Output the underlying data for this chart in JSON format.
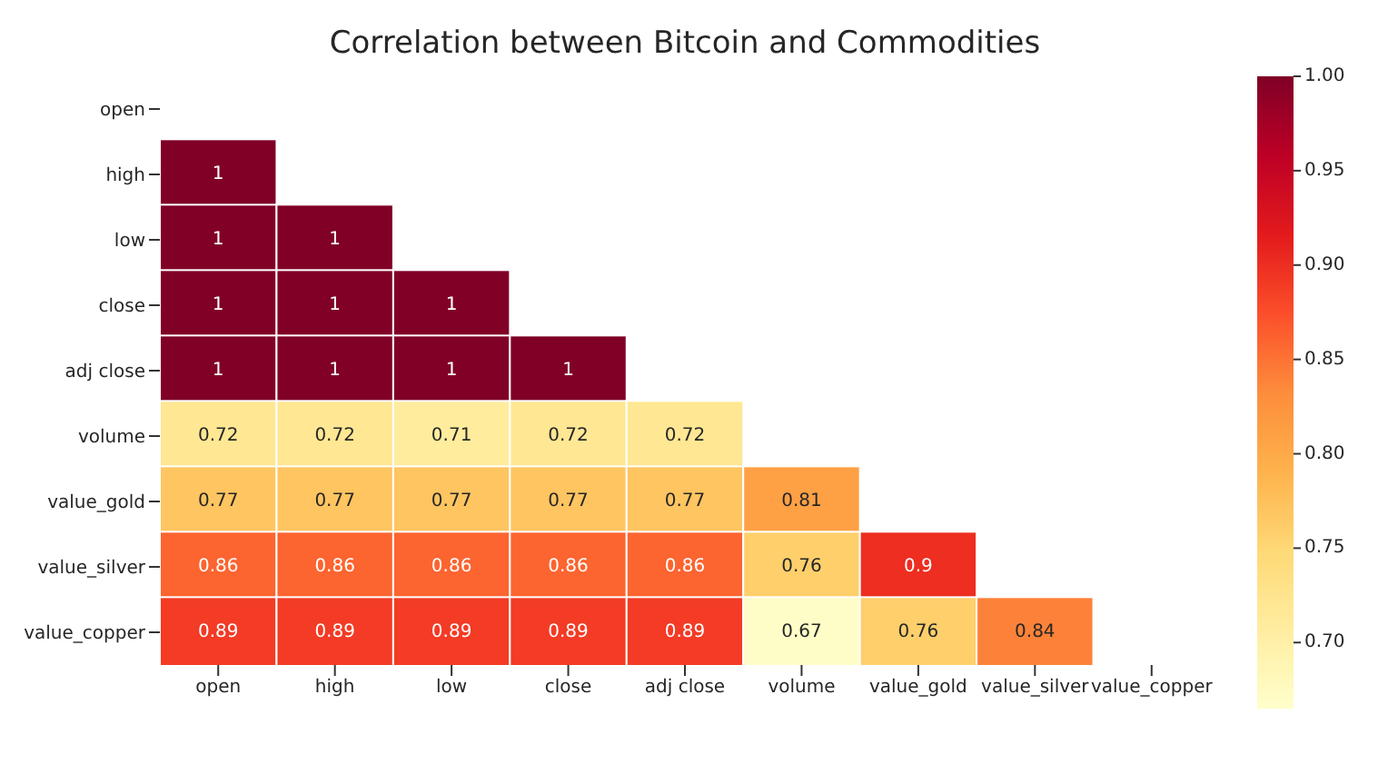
{
  "chart_data": {
    "type": "heatmap",
    "title": "Correlation between Bitcoin and Commodities",
    "categories": [
      "open",
      "high",
      "low",
      "close",
      "adj close",
      "volume",
      "value_gold",
      "value_silver",
      "value_copper"
    ],
    "y_categories": [
      "open",
      "high",
      "low",
      "close",
      "adj close",
      "volume",
      "value_gold",
      "value_silver",
      "value_copper"
    ],
    "cells": [
      [
        null,
        null,
        null,
        null,
        null,
        null,
        null,
        null,
        null
      ],
      [
        1,
        null,
        null,
        null,
        null,
        null,
        null,
        null,
        null
      ],
      [
        1,
        1,
        null,
        null,
        null,
        null,
        null,
        null,
        null
      ],
      [
        1,
        1,
        1,
        null,
        null,
        null,
        null,
        null,
        null
      ],
      [
        1,
        1,
        1,
        1,
        null,
        null,
        null,
        null,
        null
      ],
      [
        0.72,
        0.72,
        0.71,
        0.72,
        0.72,
        null,
        null,
        null,
        null
      ],
      [
        0.77,
        0.77,
        0.77,
        0.77,
        0.77,
        0.81,
        null,
        null,
        null
      ],
      [
        0.86,
        0.86,
        0.86,
        0.86,
        0.86,
        0.76,
        0.9,
        null,
        null
      ],
      [
        0.89,
        0.89,
        0.89,
        0.89,
        0.89,
        0.67,
        0.76,
        0.84,
        null
      ]
    ],
    "clim": [
      0.665,
      1.0
    ],
    "cticks": [
      {
        "value": 0.7,
        "label": "0.70"
      },
      0.75,
      {
        "value": 0.8,
        "label": "0.80"
      },
      0.85,
      {
        "value": 0.9,
        "label": "0.90"
      },
      0.95,
      {
        "value": 1,
        "label": "1.00"
      }
    ],
    "data_labels": true
  }
}
